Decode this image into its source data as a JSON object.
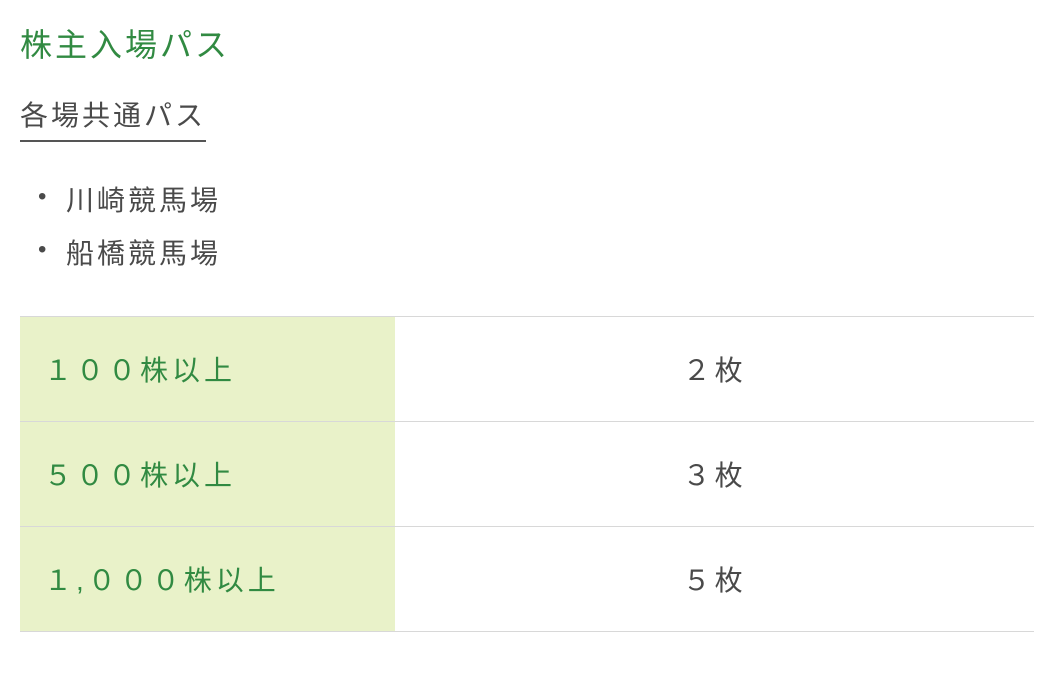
{
  "colors": {
    "heading_green": "#318a42",
    "text_gray": "#4a4a4a",
    "bullet_gray": "#5a5a5a",
    "border_gray": "#d8d8d8",
    "underline_gray": "#555555",
    "cell_bg_green": "#e9f2c9",
    "label_green": "#318a42"
  },
  "heading": "株主入場パス",
  "subheading": "各場共通パス",
  "bullets": [
    "川崎競馬場",
    "船橋競馬場"
  ],
  "table": {
    "rows": [
      {
        "label": "１００株以上",
        "value": "２枚"
      },
      {
        "label": "５００株以上",
        "value": "３枚"
      },
      {
        "label": "１,０００株以上",
        "value": "５枚"
      }
    ]
  }
}
